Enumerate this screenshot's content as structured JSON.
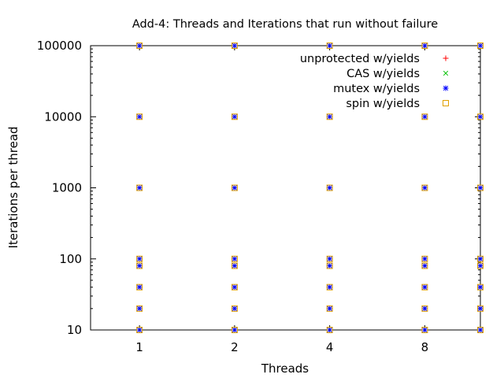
{
  "chart_data": {
    "type": "scatter",
    "title": "Add-4: Threads and Iterations that run without failure",
    "xlabel": "Threads",
    "ylabel": "Iterations per thread",
    "x_scale": "log2",
    "y_scale": "log10",
    "xlim": [
      0.7,
      12
    ],
    "ylim": [
      10,
      100000
    ],
    "x_ticks": [
      1,
      2,
      4,
      8
    ],
    "x_tick_labels": [
      "1",
      "2",
      "4",
      "8"
    ],
    "y_ticks": [
      10,
      100,
      1000,
      10000,
      100000
    ],
    "y_tick_labels": [
      "10",
      "100",
      "1000",
      "10000",
      "100000"
    ],
    "grid": false,
    "legend_position": "top-right",
    "series": [
      {
        "name": "unprotected w/yields",
        "marker": "plus",
        "color": "#ff0000",
        "points": []
      },
      {
        "name": "CAS w/yields",
        "marker": "cross",
        "color": "#00c000",
        "points": []
      },
      {
        "name": "mutex w/yields",
        "marker": "star",
        "color": "#0000ff",
        "points": [
          [
            1,
            10
          ],
          [
            1,
            20
          ],
          [
            1,
            40
          ],
          [
            1,
            80
          ],
          [
            1,
            100
          ],
          [
            1,
            1000
          ],
          [
            1,
            10000
          ],
          [
            1,
            100000
          ],
          [
            2,
            10
          ],
          [
            2,
            20
          ],
          [
            2,
            40
          ],
          [
            2,
            80
          ],
          [
            2,
            100
          ],
          [
            2,
            1000
          ],
          [
            2,
            10000
          ],
          [
            2,
            100000
          ],
          [
            4,
            10
          ],
          [
            4,
            20
          ],
          [
            4,
            40
          ],
          [
            4,
            80
          ],
          [
            4,
            100
          ],
          [
            4,
            1000
          ],
          [
            4,
            10000
          ],
          [
            4,
            100000
          ],
          [
            8,
            10
          ],
          [
            8,
            20
          ],
          [
            8,
            40
          ],
          [
            8,
            80
          ],
          [
            8,
            100
          ],
          [
            8,
            1000
          ],
          [
            8,
            10000
          ],
          [
            8,
            100000
          ],
          [
            12,
            10
          ],
          [
            12,
            20
          ],
          [
            12,
            40
          ],
          [
            12,
            80
          ],
          [
            12,
            100
          ],
          [
            12,
            1000
          ],
          [
            12,
            10000
          ],
          [
            12,
            100000
          ]
        ]
      },
      {
        "name": "spin w/yields",
        "marker": "square",
        "color": "#e0a000",
        "points": [
          [
            1,
            10
          ],
          [
            1,
            20
          ],
          [
            1,
            40
          ],
          [
            1,
            80
          ],
          [
            1,
            100
          ],
          [
            1,
            1000
          ],
          [
            1,
            10000
          ],
          [
            1,
            100000
          ],
          [
            2,
            10
          ],
          [
            2,
            20
          ],
          [
            2,
            40
          ],
          [
            2,
            80
          ],
          [
            2,
            100
          ],
          [
            2,
            1000
          ],
          [
            2,
            10000
          ],
          [
            2,
            100000
          ],
          [
            4,
            10
          ],
          [
            4,
            20
          ],
          [
            4,
            40
          ],
          [
            4,
            80
          ],
          [
            4,
            100
          ],
          [
            4,
            1000
          ],
          [
            4,
            10000
          ],
          [
            4,
            100000
          ],
          [
            8,
            10
          ],
          [
            8,
            20
          ],
          [
            8,
            40
          ],
          [
            8,
            80
          ],
          [
            8,
            100
          ],
          [
            8,
            1000
          ],
          [
            8,
            10000
          ],
          [
            8,
            100000
          ],
          [
            12,
            10
          ],
          [
            12,
            20
          ],
          [
            12,
            40
          ],
          [
            12,
            80
          ],
          [
            12,
            100
          ],
          [
            12,
            1000
          ],
          [
            12,
            10000
          ],
          [
            12,
            100000
          ]
        ]
      }
    ]
  }
}
